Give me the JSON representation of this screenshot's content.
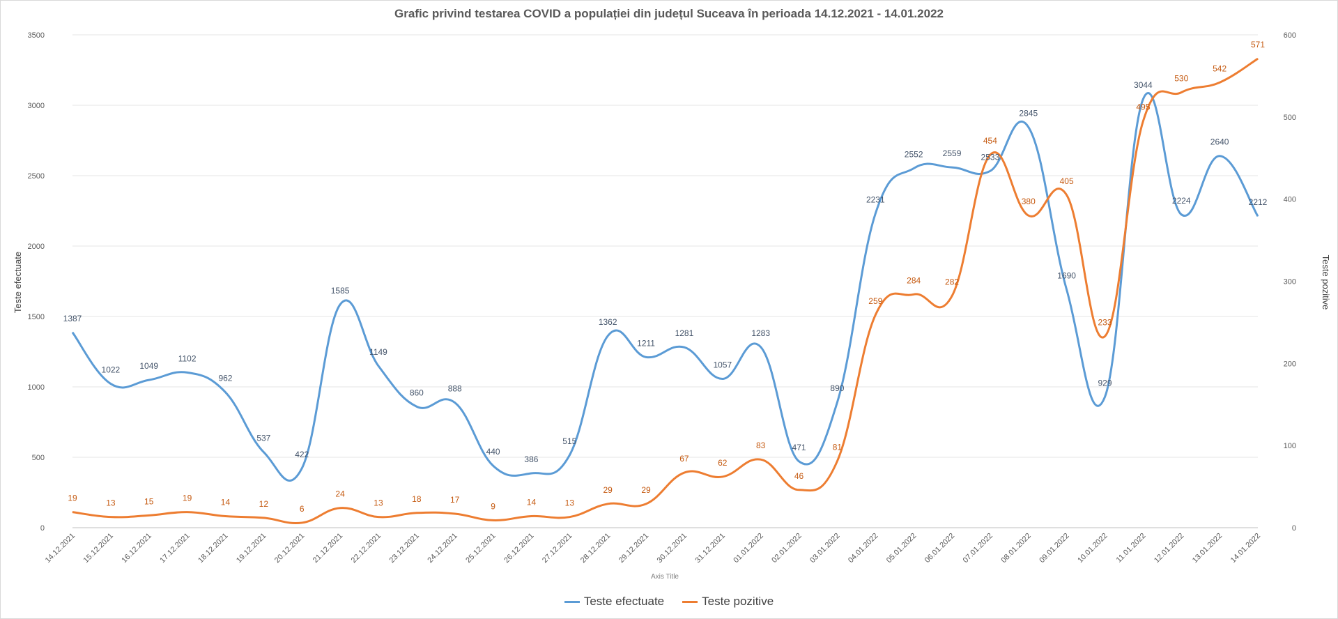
{
  "chart_data": {
    "type": "line",
    "title": "Grafic privind testarea COVID a populației din județul Suceava în perioada 14.12.2021 - 14.01.2022",
    "xlabel": "Axis Title",
    "ylabel": "Teste efectuate",
    "y2label": "Teste pozitive",
    "ylim": [
      0,
      3500
    ],
    "y_ticks": [
      0,
      500,
      1000,
      1500,
      2000,
      2500,
      3000,
      3500
    ],
    "y2lim": [
      0,
      600
    ],
    "y2_ticks": [
      0,
      100,
      200,
      300,
      400,
      500,
      600
    ],
    "grid": true,
    "legend_position": "bottom",
    "categories": [
      "14.12.2021",
      "15.12.2021",
      "16.12.2021",
      "17.12.2021",
      "18.12.2021",
      "19.12.2021",
      "20.12.2021",
      "21.12.2021",
      "22.12.2021",
      "23.12.2021",
      "24.12.2021",
      "25.12.2021",
      "26.12.2021",
      "27.12.2021",
      "28.12.2021",
      "29.12.2021",
      "30.12.2021",
      "31.12.2021",
      "01.01.2022",
      "02.01.2022",
      "03.01.2022",
      "04.01.2022",
      "05.01.2022",
      "06.01.2022",
      "07.01.2022",
      "08.01.2022",
      "09.01.2022",
      "10.01.2022",
      "11.01.2022",
      "12.01.2022",
      "13.01.2022",
      "14.01.2022"
    ],
    "series": [
      {
        "name": "Teste efectuate",
        "axis": "left",
        "color": "#5b9bd5",
        "label_color": "#44546a",
        "values": [
          1387,
          1022,
          1049,
          1102,
          962,
          537,
          422,
          1585,
          1149,
          860,
          888,
          440,
          386,
          515,
          1362,
          1211,
          1281,
          1057,
          1283,
          471,
          890,
          2231,
          2552,
          2559,
          2533,
          2845,
          1690,
          929,
          3044,
          2224,
          2640,
          2212
        ]
      },
      {
        "name": "Teste pozitive",
        "axis": "right",
        "color": "#ed7d31",
        "label_color": "#c55a11",
        "values": [
          19,
          13,
          15,
          19,
          14,
          12,
          6,
          24,
          13,
          18,
          17,
          9,
          14,
          13,
          29,
          29,
          67,
          62,
          83,
          46,
          81,
          259,
          284,
          282,
          454,
          380,
          405,
          233,
          495,
          530,
          542,
          571
        ]
      }
    ]
  }
}
